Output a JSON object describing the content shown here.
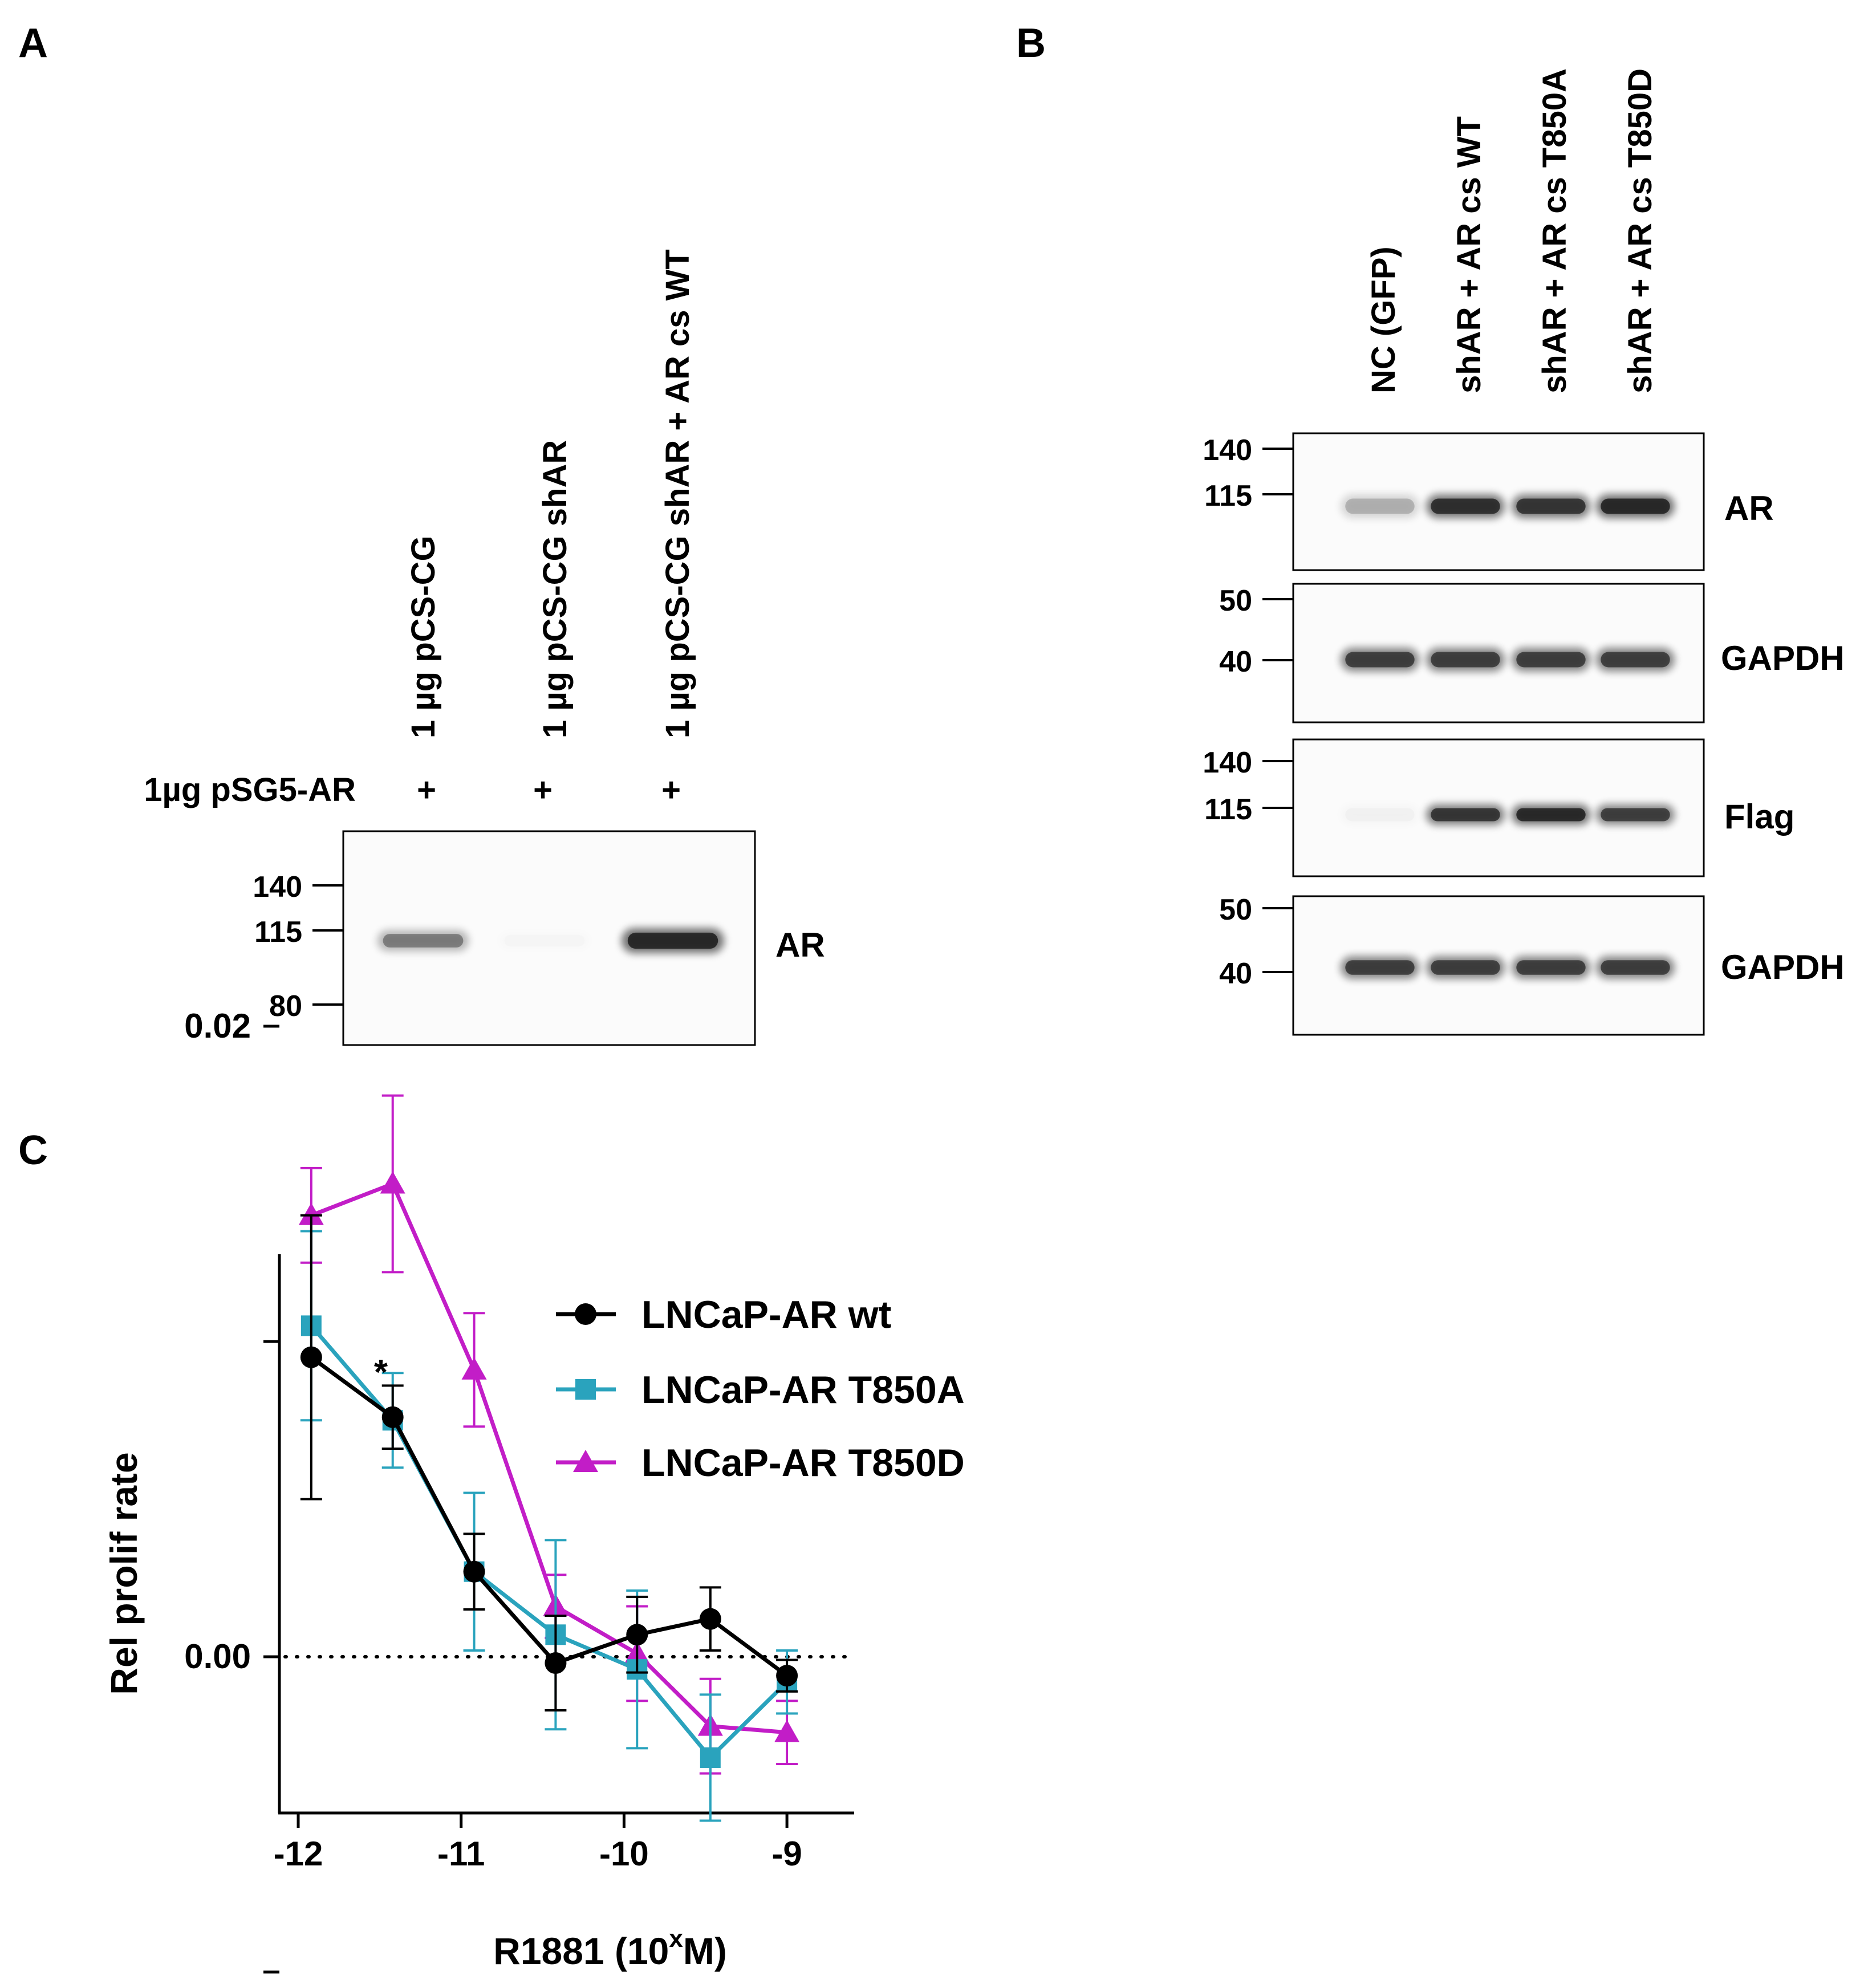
{
  "panel_a": {
    "label": "A",
    "lanes": [
      "1 µg pCS-CG",
      "1 µg pCS-CG shAR",
      "1 µg pCS-CG shAR + AR cs WT"
    ],
    "row_label": "1µg pSG5-AR",
    "signs": [
      "+",
      "+",
      "+"
    ],
    "markers": [
      "140",
      "115",
      "80"
    ],
    "band_label": "AR",
    "band_intensity": [
      0.5,
      0.02,
      1.0
    ]
  },
  "panel_b": {
    "label": "B",
    "lanes": [
      "NC (GFP)",
      "shAR + AR cs WT",
      "shAR + AR cs T850A",
      "shAR + AR cs T850D"
    ],
    "blots": [
      {
        "name": "AR",
        "markers": [
          "140",
          "115"
        ],
        "band_intensity": [
          0.28,
          0.95,
          0.9,
          1.0
        ]
      },
      {
        "name": "GAPDH",
        "markers": [
          "50",
          "40"
        ],
        "band_intensity": [
          0.85,
          0.85,
          0.85,
          0.85
        ]
      },
      {
        "name": "Flag",
        "markers": [
          "140",
          "115"
        ],
        "band_intensity": [
          0.03,
          0.9,
          1.0,
          0.85
        ]
      },
      {
        "name": "GAPDH",
        "markers": [
          "50",
          "40"
        ],
        "band_intensity": [
          0.85,
          0.85,
          0.85,
          0.85
        ]
      }
    ]
  },
  "panel_c": {
    "label": "C",
    "significance_mark": "*",
    "xlabel_main": "R1881 (10",
    "xlabel_sup": "x",
    "xlabel_end": "M)"
  },
  "chart_data": {
    "type": "line",
    "xlabel": "R1881 (10^x M)",
    "ylabel": "Rel prolif rate",
    "xlim": [
      -12,
      -8.5
    ],
    "ylim": [
      -0.01,
      0.025
    ],
    "x_ticks": [
      -12,
      -11,
      -10,
      -9
    ],
    "x_tick_labels": [
      "-12",
      "-11",
      "-10",
      "-9"
    ],
    "y_ticks": [
      0.02,
      0.01,
      0.0,
      -0.01
    ],
    "y_tick_labels": [
      "0.02",
      "",
      "0.00",
      ""
    ],
    "reference_line": 0,
    "x": [
      -11.92,
      -11.42,
      -10.92,
      -10.42,
      -9.92,
      -9.47,
      -9.0
    ],
    "legend_position": "top-right",
    "series": [
      {
        "name": "LNCaP-AR wt",
        "color": "#000000",
        "marker": "circle",
        "values": [
          0.0095,
          0.0076,
          0.0027,
          -0.0002,
          0.0007,
          0.0012,
          -0.0006
        ],
        "errors": [
          0.0045,
          0.001,
          0.0012,
          0.0015,
          0.0012,
          0.001,
          0.0005
        ]
      },
      {
        "name": "LNCaP-AR T850A",
        "color": "#2aa3bd",
        "marker": "square",
        "values": [
          0.0105,
          0.0075,
          0.0027,
          0.0007,
          -0.0004,
          -0.0032,
          -0.0008
        ],
        "errors": [
          0.003,
          0.0015,
          0.0025,
          0.003,
          0.0025,
          0.002,
          0.001
        ]
      },
      {
        "name": "LNCaP-AR T850D",
        "color": "#c21dc7",
        "marker": "triangle",
        "values": [
          0.014,
          0.015,
          0.0091,
          0.0016,
          0.0001,
          -0.0022,
          -0.0024
        ],
        "errors": [
          0.0015,
          0.0028,
          0.0018,
          0.001,
          0.0015,
          0.0015,
          0.001
        ]
      }
    ]
  }
}
